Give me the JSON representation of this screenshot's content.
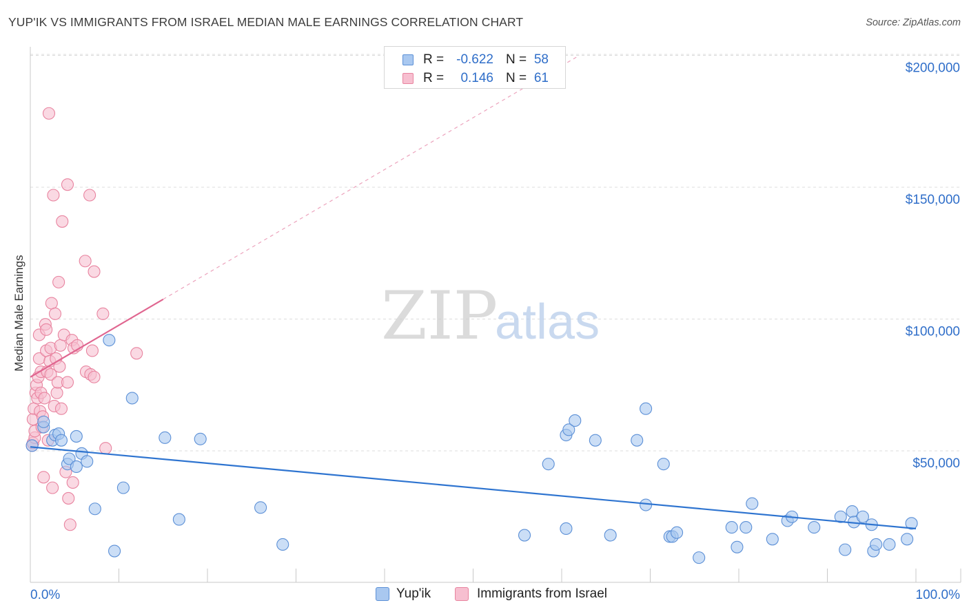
{
  "header": {
    "title": "YUP'IK VS IMMIGRANTS FROM ISRAEL MEDIAN MALE EARNINGS CORRELATION CHART",
    "source": "Source: ZipAtlas.com"
  },
  "legend": {
    "rows": [
      {
        "r_label": "R =",
        "r_value": "-0.622",
        "n_label": "N =",
        "n_value": "58"
      },
      {
        "r_label": "R =",
        "r_value": "0.146",
        "n_label": "N =",
        "n_value": "61"
      }
    ]
  },
  "bottom_legend": {
    "series_a": "Yup'ik",
    "series_b": "Immigrants from Israel"
  },
  "watermark": {
    "zip": "ZIP",
    "atlas": "atlas"
  },
  "colors": {
    "blue_fill": "#a9c8f0",
    "blue_stroke": "#5b8fd6",
    "blue_line": "#2e74d0",
    "pink_fill": "#f7bfd0",
    "pink_stroke": "#e8839f",
    "pink_line": "#e06690",
    "grid": "#dcdcdc",
    "axis_text": "#2f6ec9"
  },
  "chart_data": {
    "type": "scatter",
    "title": "YUP'IK VS IMMIGRANTS FROM ISRAEL MEDIAN MALE EARNINGS CORRELATION CHART",
    "xlabel": "",
    "ylabel": "Median Male Earnings",
    "xlim": [
      0,
      100
    ],
    "ylim": [
      0,
      205000
    ],
    "x_tick_labels": [
      "0.0%",
      "100.0%"
    ],
    "y_ticks": [
      50000,
      100000,
      150000,
      200000
    ],
    "y_tick_labels": [
      "$50,000",
      "$100,000",
      "$150,000",
      "$200,000"
    ],
    "grid": true,
    "series": [
      {
        "name": "Yup'ik",
        "r": -0.622,
        "n": 58,
        "trend": {
          "x": [
            0,
            100
          ],
          "y": [
            51500,
            20500
          ],
          "style": "solid"
        },
        "points": [
          [
            0.2,
            52000
          ],
          [
            1.5,
            59000
          ],
          [
            1.5,
            61000
          ],
          [
            2.5,
            54000
          ],
          [
            2.8,
            56000
          ],
          [
            3.2,
            56500
          ],
          [
            3.5,
            54000
          ],
          [
            4.2,
            45000
          ],
          [
            4.4,
            47000
          ],
          [
            5.2,
            44000
          ],
          [
            5.2,
            55500
          ],
          [
            5.8,
            49000
          ],
          [
            6.4,
            46000
          ],
          [
            7.3,
            28000
          ],
          [
            8.9,
            92000
          ],
          [
            9.5,
            12000
          ],
          [
            10.5,
            36000
          ],
          [
            11.5,
            70000
          ],
          [
            15.2,
            55000
          ],
          [
            16.8,
            24000
          ],
          [
            19.2,
            54500
          ],
          [
            26.0,
            28500
          ],
          [
            28.5,
            14500
          ],
          [
            55.8,
            18000
          ],
          [
            58.5,
            45000
          ],
          [
            60.5,
            20500
          ],
          [
            60.5,
            56000
          ],
          [
            60.8,
            58000
          ],
          [
            61.5,
            61500
          ],
          [
            63.8,
            54000
          ],
          [
            65.5,
            18000
          ],
          [
            68.5,
            54000
          ],
          [
            69.5,
            29500
          ],
          [
            69.5,
            66000
          ],
          [
            71.5,
            45000
          ],
          [
            72.2,
            17500
          ],
          [
            72.5,
            17500
          ],
          [
            73.0,
            19000
          ],
          [
            75.5,
            9500
          ],
          [
            79.2,
            21000
          ],
          [
            79.8,
            13500
          ],
          [
            80.8,
            21000
          ],
          [
            81.5,
            30000
          ],
          [
            83.8,
            16500
          ],
          [
            85.5,
            23500
          ],
          [
            86.0,
            25000
          ],
          [
            88.5,
            21000
          ],
          [
            91.5,
            25000
          ],
          [
            92.0,
            12500
          ],
          [
            92.8,
            27000
          ],
          [
            93.0,
            23000
          ],
          [
            94.0,
            25000
          ],
          [
            95.0,
            22000
          ],
          [
            95.2,
            12000
          ],
          [
            95.5,
            14500
          ],
          [
            97.0,
            14500
          ],
          [
            99.0,
            16500
          ],
          [
            99.5,
            22500
          ]
        ]
      },
      {
        "name": "Immigrants from Israel",
        "r": 0.146,
        "n": 61,
        "trend": {
          "x": [
            0,
            15
          ],
          "y": [
            78000,
            107500
          ],
          "style": "solid",
          "extension": {
            "x": [
              15,
              62
            ],
            "y": [
              107500,
              200000
            ],
            "style": "dashed"
          }
        },
        "points": [
          [
            0.2,
            52000
          ],
          [
            0.3,
            53000
          ],
          [
            0.3,
            62000
          ],
          [
            0.4,
            66000
          ],
          [
            0.5,
            55000
          ],
          [
            0.5,
            57500
          ],
          [
            0.6,
            72000
          ],
          [
            0.7,
            75000
          ],
          [
            0.8,
            70000
          ],
          [
            0.9,
            78000
          ],
          [
            1.0,
            85000
          ],
          [
            1.0,
            94000
          ],
          [
            1.1,
            65000
          ],
          [
            1.2,
            80000
          ],
          [
            1.2,
            72000
          ],
          [
            1.3,
            59000
          ],
          [
            1.4,
            63000
          ],
          [
            1.5,
            40000
          ],
          [
            1.6,
            70000
          ],
          [
            1.7,
            98000
          ],
          [
            1.8,
            88000
          ],
          [
            1.8,
            96000
          ],
          [
            1.9,
            80000
          ],
          [
            2.0,
            54000
          ],
          [
            2.1,
            178000
          ],
          [
            2.2,
            84000
          ],
          [
            2.3,
            89000
          ],
          [
            2.3,
            79000
          ],
          [
            2.4,
            106000
          ],
          [
            2.5,
            36000
          ],
          [
            2.6,
            147000
          ],
          [
            2.7,
            67000
          ],
          [
            2.8,
            102000
          ],
          [
            2.9,
            85000
          ],
          [
            3.0,
            72000
          ],
          [
            3.1,
            76000
          ],
          [
            3.2,
            114000
          ],
          [
            3.3,
            82000
          ],
          [
            3.4,
            90000
          ],
          [
            3.5,
            66000
          ],
          [
            3.6,
            137000
          ],
          [
            3.8,
            94000
          ],
          [
            4.0,
            42000
          ],
          [
            4.2,
            76000
          ],
          [
            4.2,
            151000
          ],
          [
            4.3,
            32000
          ],
          [
            4.5,
            22000
          ],
          [
            4.7,
            92000
          ],
          [
            4.8,
            38000
          ],
          [
            4.9,
            89000
          ],
          [
            5.3,
            90000
          ],
          [
            6.2,
            122000
          ],
          [
            6.3,
            80000
          ],
          [
            6.8,
            79000
          ],
          [
            6.7,
            147000
          ],
          [
            7.0,
            88000
          ],
          [
            7.2,
            118000
          ],
          [
            7.2,
            78000
          ],
          [
            8.2,
            102000
          ],
          [
            8.5,
            51000
          ],
          [
            12.0,
            87000
          ]
        ]
      }
    ]
  }
}
